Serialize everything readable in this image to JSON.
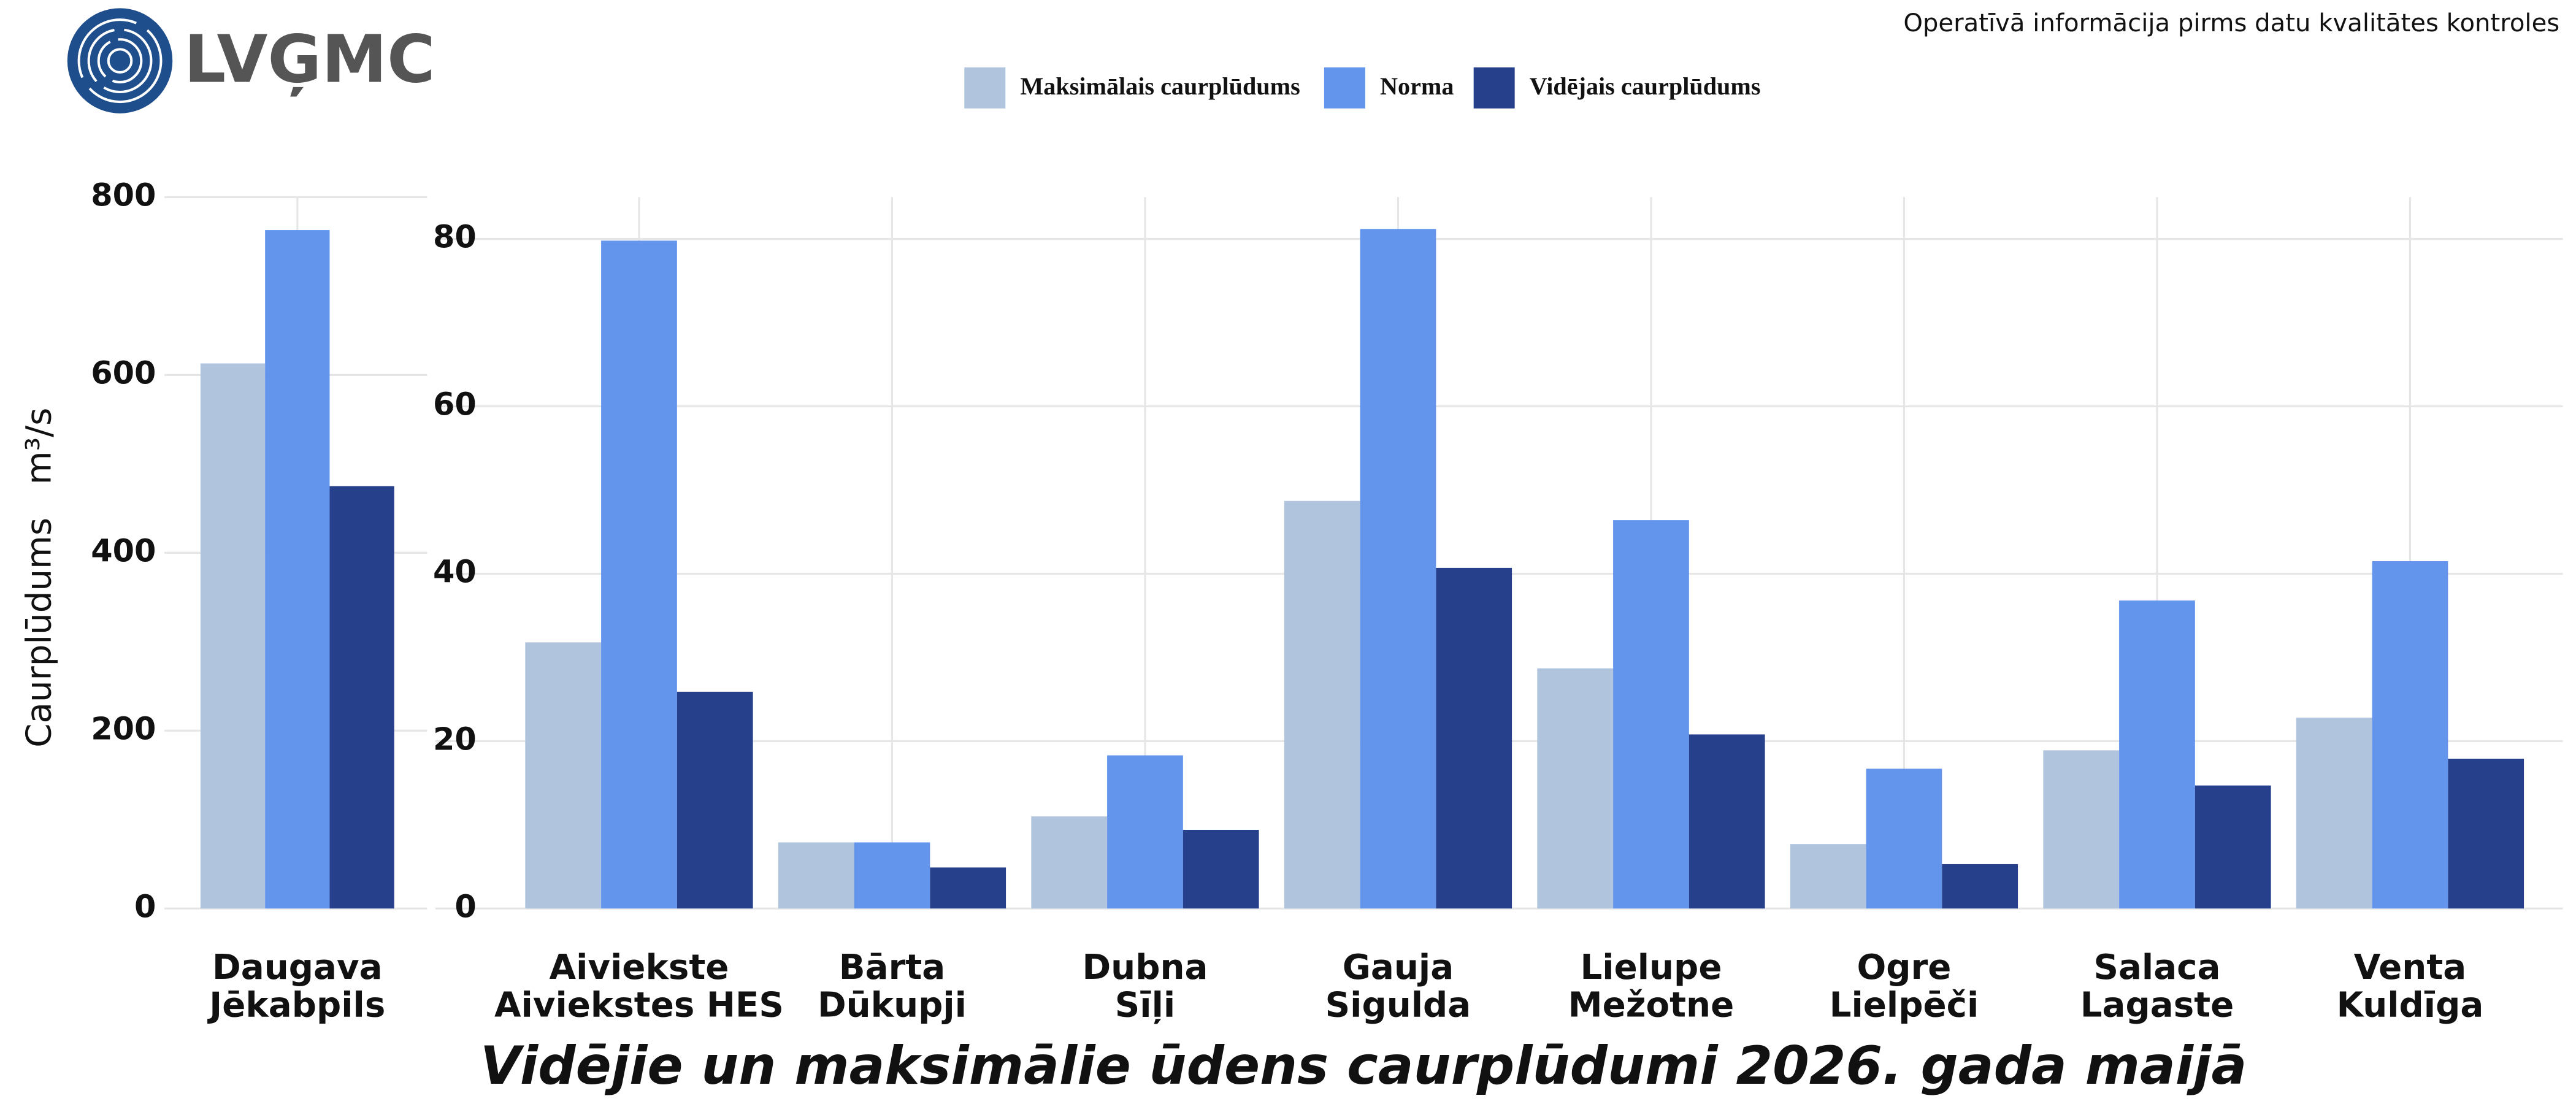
{
  "header": {
    "logo": "LVĢMC",
    "note": "Operatīvā informācija pirms datu kvalitātes kontroles"
  },
  "title": "Vidējie un maksimālie ūdens caurplūdumi 2026. gada maijā",
  "y_label": "Caurplūdums",
  "y_unit": "m³/s",
  "chart_data": [
    {
      "type": "bar",
      "grid": true,
      "categories": [
        [
          "Daugava",
          "Jēkabpils"
        ]
      ],
      "series": [
        {
          "name": "Maksimālais caurplūdums",
          "color": "#b0c4de",
          "values": [
            613
          ]
        },
        {
          "name": "Norma",
          "color": "#6495ed",
          "values": [
            763
          ]
        },
        {
          "name": "Vidējais caurplūdums",
          "color": "#27408b",
          "values": [
            475
          ]
        }
      ],
      "ylim": [
        0,
        800
      ],
      "yticks": [
        0,
        200,
        400,
        600,
        800
      ]
    },
    {
      "type": "bar",
      "grid": true,
      "categories": [
        [
          "Aiviekste",
          "Aiviekstes HES"
        ],
        [
          "Bārta",
          "Dūkupji"
        ],
        [
          "Dubna",
          "Sīļi"
        ],
        [
          "Gauja",
          "Sigulda"
        ],
        [
          "Lielupe",
          "Mežotne"
        ],
        [
          "Ogre",
          "Lielpēči"
        ],
        [
          "Salaca",
          "Lagaste"
        ],
        [
          "Venta",
          "Kuldīga"
        ]
      ],
      "series": [
        {
          "name": "Maksimālais caurplūdums",
          "color": "#b0c4de",
          "values": [
            31.8,
            7.9,
            11.0,
            48.7,
            28.7,
            7.7,
            18.9,
            22.8
          ]
        },
        {
          "name": "Norma",
          "color": "#6495ed",
          "values": [
            79.8,
            7.9,
            18.3,
            81.2,
            46.4,
            16.7,
            36.8,
            41.5
          ]
        },
        {
          "name": "Vidējais caurplūdums",
          "color": "#27408b",
          "values": [
            25.9,
            4.9,
            9.4,
            40.7,
            20.8,
            5.3,
            14.7,
            17.9
          ]
        }
      ],
      "ylim": [
        0,
        85
      ],
      "yticks": [
        0,
        20,
        40,
        60,
        80
      ]
    }
  ]
}
